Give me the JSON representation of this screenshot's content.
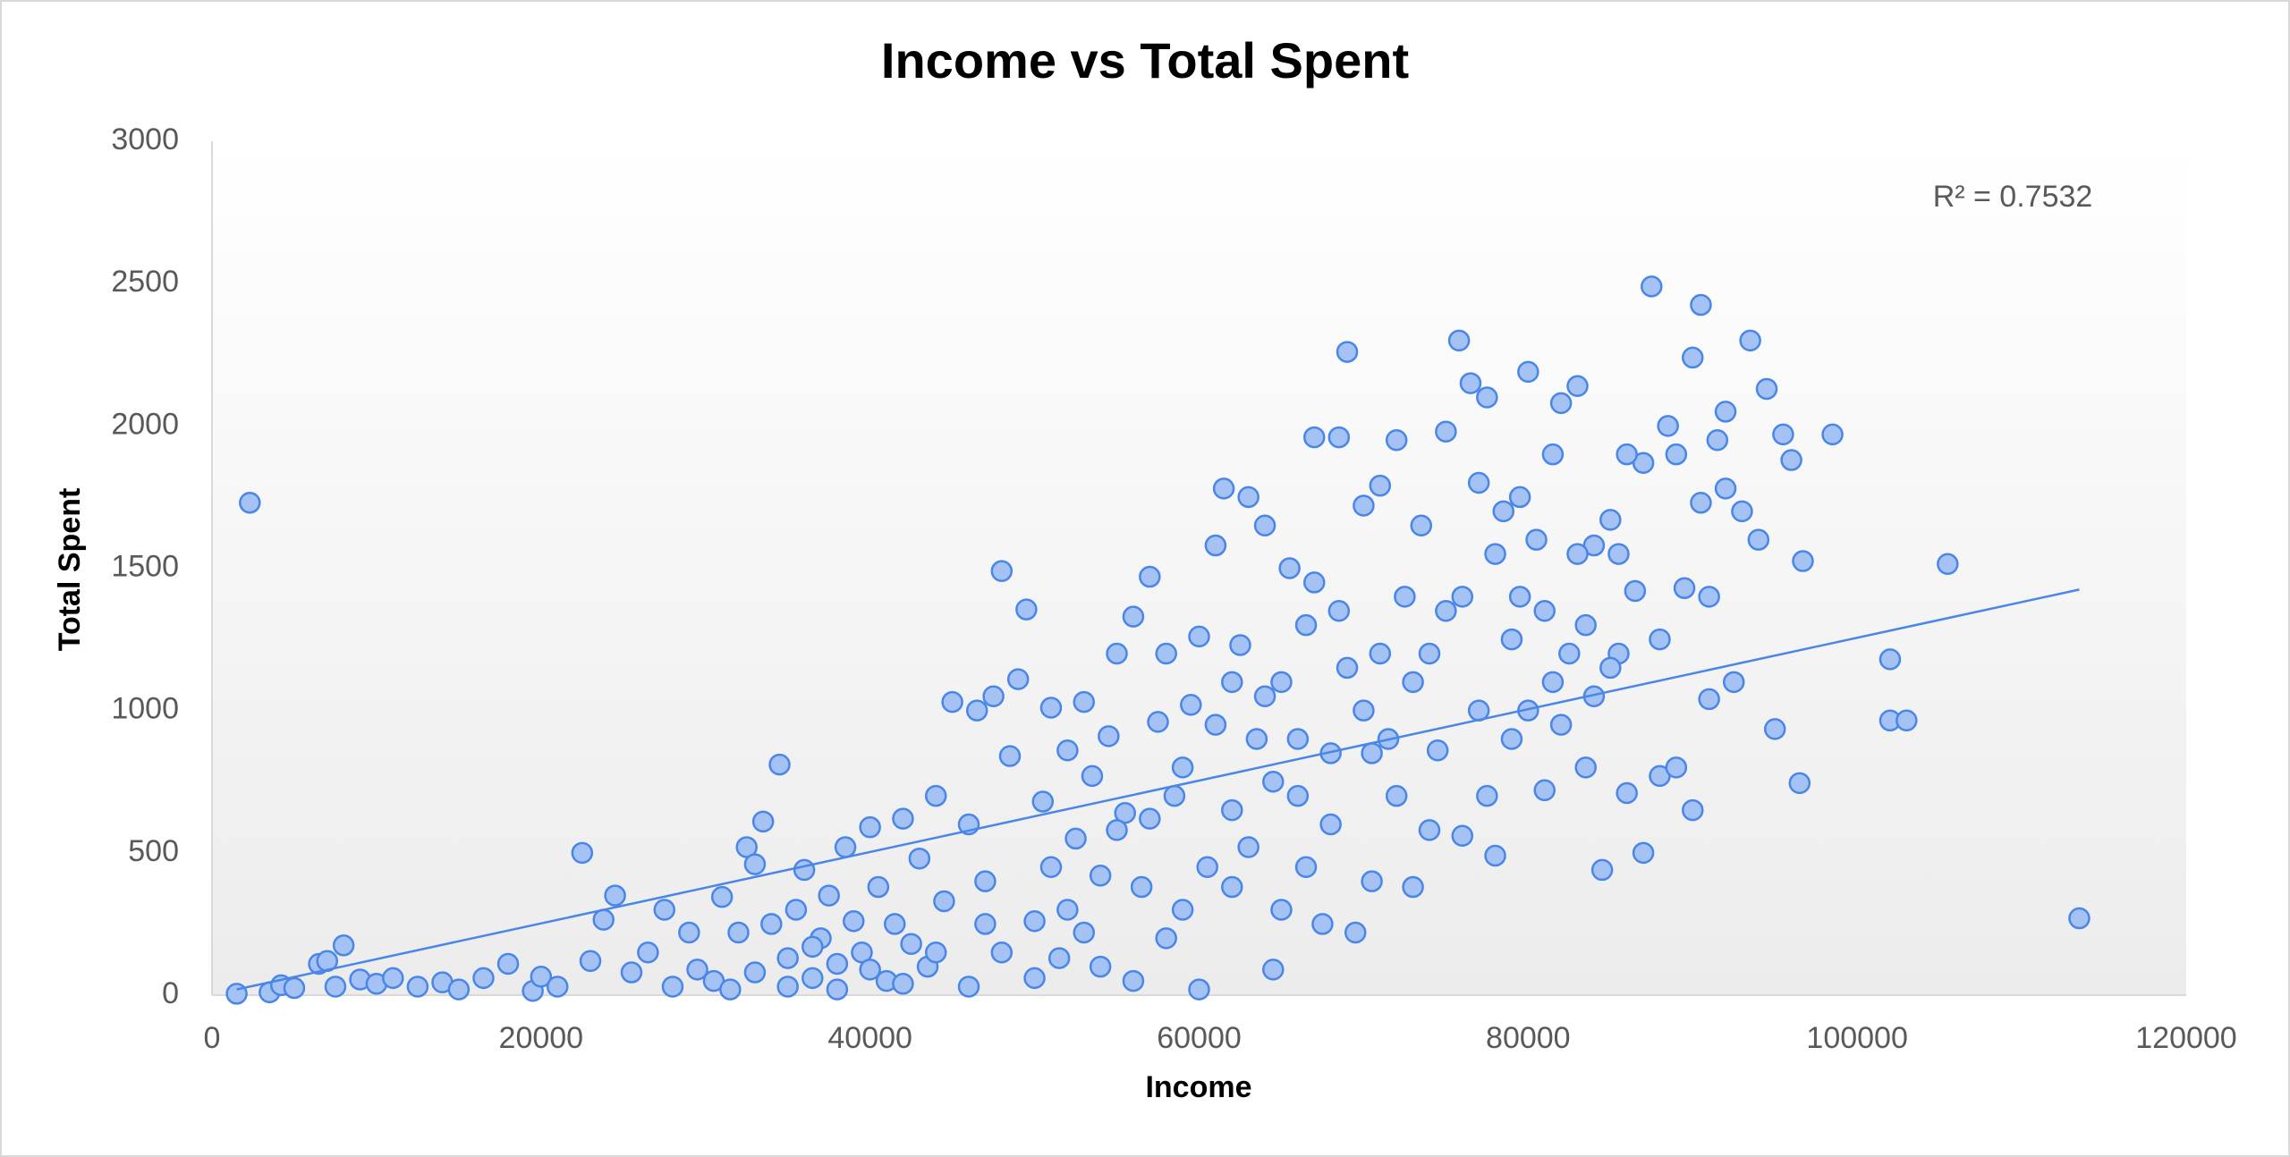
{
  "chart_data": {
    "type": "scatter",
    "title": "Income vs Total Spent",
    "x_label": "Income",
    "y_label": "Total Spent",
    "annotation": "R² = 0.7532",
    "xlim": [
      0,
      120000
    ],
    "xticks": [
      0,
      20000,
      40000,
      60000,
      80000,
      100000,
      120000
    ],
    "ylim": [
      0,
      3000
    ],
    "yticks": [
      0,
      500,
      1000,
      1500,
      2000,
      2500,
      3000
    ],
    "grid": false,
    "series": [
      {
        "color": "#4a86e8",
        "x": [
          1500,
          3500,
          4200,
          5000,
          6500,
          7000,
          7500,
          8000,
          9000,
          10000,
          11000,
          12500,
          14000,
          15000,
          16500,
          18000,
          19500,
          20000,
          21000,
          22500,
          23000,
          23800,
          24500,
          25500,
          26500,
          27500,
          28000,
          29000,
          29500,
          30500,
          31000,
          32000,
          32500,
          33000,
          33500,
          34000,
          34500,
          35000,
          35500,
          36000,
          36500,
          37000,
          37500,
          38000,
          38500,
          39000,
          39500,
          40000,
          40500,
          41000,
          41500,
          42000,
          42500,
          43000,
          43500,
          44000,
          44500,
          45000,
          31500,
          33000,
          35000,
          36500,
          38000,
          40000,
          42000,
          44000,
          46000,
          46500,
          47000,
          47500,
          48000,
          48500,
          49000,
          49500,
          50000,
          50500,
          51000,
          51500,
          52000,
          52500,
          53000,
          53500,
          54000,
          54500,
          55000,
          55500,
          56000,
          56500,
          57000,
          57500,
          58000,
          58500,
          59000,
          59500,
          46000,
          48000,
          50000,
          52000,
          54000,
          56000,
          58000,
          60000,
          47000,
          51000,
          53000,
          55000,
          57000,
          59000,
          60000,
          60500,
          61000,
          61500,
          62000,
          62500,
          63000,
          63500,
          64000,
          64500,
          65000,
          65500,
          66000,
          66500,
          67000,
          67500,
          68000,
          68500,
          69000,
          69500,
          70000,
          70500,
          71000,
          71500,
          72000,
          72500,
          73000,
          73500,
          74000,
          74500,
          75000,
          61000,
          62000,
          63000,
          64000,
          65000,
          66000,
          67000,
          68000,
          69000,
          70000,
          71000,
          72000,
          73000,
          74000,
          75000,
          62000,
          64500,
          66500,
          68500,
          70500,
          75800,
          76000,
          76500,
          77000,
          77500,
          78000,
          78500,
          79000,
          79500,
          80000,
          80500,
          81000,
          81500,
          82000,
          82500,
          83000,
          83500,
          84000,
          84500,
          85000,
          85500,
          86000,
          86500,
          87000,
          87500,
          88000,
          88500,
          89000,
          89500,
          90000,
          76000,
          77000,
          78000,
          79000,
          80000,
          81000,
          82000,
          83000,
          84000,
          85000,
          86000,
          87000,
          88000,
          89000,
          90000,
          77500,
          79500,
          81500,
          83500,
          85500,
          90500,
          91000,
          91500,
          92000,
          92500,
          93000,
          93500,
          94000,
          94500,
          95000,
          95500,
          96000,
          96500,
          96700,
          98500,
          102000,
          102000,
          103000,
          105500,
          113500,
          2300,
          90500,
          92000,
          91000
        ],
        "values": [
          5,
          10,
          35,
          25,
          110,
          120,
          30,
          175,
          55,
          40,
          60,
          30,
          45,
          20,
          60,
          110,
          15,
          65,
          30,
          500,
          120,
          265,
          350,
          80,
          150,
          300,
          30,
          220,
          90,
          50,
          345,
          220,
          520,
          460,
          610,
          250,
          810,
          130,
          300,
          440,
          60,
          200,
          350,
          110,
          520,
          260,
          150,
          590,
          380,
          50,
          250,
          620,
          180,
          480,
          100,
          700,
          330,
          1030,
          20,
          80,
          30,
          170,
          20,
          90,
          40,
          150,
          600,
          1000,
          400,
          1050,
          1490,
          840,
          1110,
          1355,
          260,
          680,
          1010,
          130,
          860,
          550,
          1030,
          770,
          420,
          910,
          1200,
          640,
          1330,
          380,
          1470,
          960,
          1200,
          700,
          300,
          1020,
          30,
          150,
          60,
          300,
          100,
          50,
          200,
          20,
          250,
          450,
          220,
          580,
          620,
          800,
          1260,
          450,
          1580,
          1780,
          650,
          1230,
          1750,
          900,
          1650,
          90,
          1100,
          1500,
          700,
          1300,
          1960,
          250,
          850,
          1960,
          2260,
          220,
          1720,
          400,
          1790,
          900,
          1950,
          1400,
          380,
          1650,
          1200,
          860,
          1980,
          950,
          380,
          520,
          1050,
          300,
          900,
          1450,
          600,
          1150,
          1000,
          1200,
          700,
          1100,
          580,
          1350,
          1100,
          750,
          450,
          1350,
          850,
          2300,
          560,
          2150,
          1800,
          2100,
          490,
          1700,
          900,
          1400,
          2190,
          1600,
          720,
          1900,
          2080,
          1200,
          2140,
          800,
          1580,
          440,
          1670,
          1200,
          710,
          1420,
          1870,
          2490,
          1250,
          2000,
          1900,
          1430,
          650,
          1400,
          1000,
          1550,
          1250,
          1000,
          1350,
          950,
          1550,
          1050,
          1150,
          1900,
          500,
          770,
          800,
          2240,
          700,
          1750,
          1100,
          1300,
          1550,
          2425,
          1040,
          1950,
          2050,
          1100,
          1700,
          2300,
          1600,
          2130,
          935,
          1970,
          1880,
          745,
          1525,
          1970,
          1180,
          965,
          965,
          1515,
          270,
          1730,
          1730,
          1780,
          1400
        ]
      }
    ],
    "trendline": {
      "color": "#4a86e8",
      "x": [
        1500,
        113500
      ],
      "values": [
        20,
        1425
      ]
    }
  }
}
